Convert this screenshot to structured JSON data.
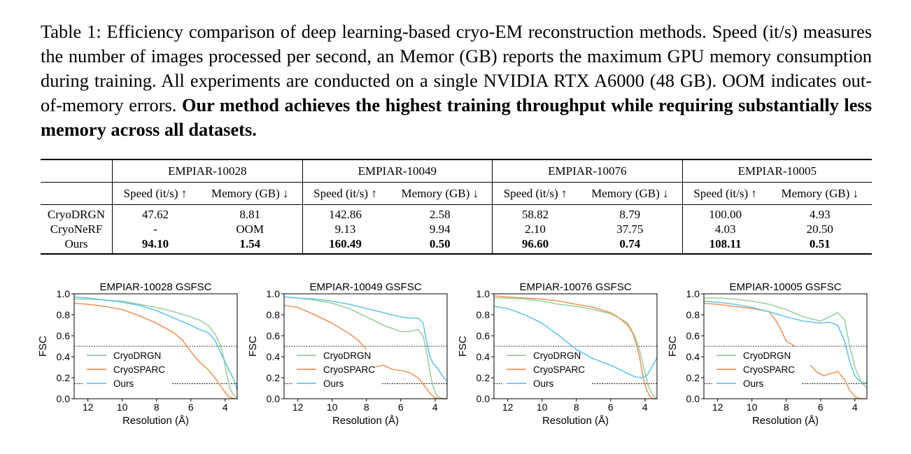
{
  "caption": {
    "plain": "Table 1: Efficiency comparison of deep learning-based cryo-EM reconstruction methods. Speed (it/s) measures the number of images processed per second, an Memor (GB) reports the maximum GPU memory consumption during training.  All experiments are conducted on a single NVIDIA RTX A6000 (48 GB). OOM indicates out-of-memory errors.",
    "bold": "Our method achieves the highest training throughput while requiring substantially less memory across all datasets."
  },
  "table": {
    "datasets": [
      "EMPIAR-10028",
      "EMPIAR-10049",
      "EMPIAR-10076",
      "EMPIAR-10005"
    ],
    "subheaders": [
      "Speed (it/s) ↑",
      "Memory (GB) ↓",
      "Speed (it/s) ↑",
      "Memory (GB) ↓",
      "Speed (it/s) ↑",
      "Memory (GB) ↓",
      "Speed (it/s) ↑",
      "Memory (GB) ↓"
    ],
    "rows": [
      {
        "method": "CryoDRGN",
        "values": [
          "47.62",
          "8.81",
          "142.86",
          "2.58",
          "58.82",
          "8.79",
          "100.00",
          "4.93"
        ]
      },
      {
        "method": "CryoNeRF",
        "values": [
          "-",
          "OOM",
          "9.13",
          "9.94",
          "2.10",
          "37.75",
          "4.03",
          "20.50"
        ]
      },
      {
        "method": "Ours",
        "values": [
          "94.10",
          "1.54",
          "160.49",
          "0.50",
          "96.60",
          "0.74",
          "108.11",
          "0.51"
        ]
      }
    ]
  },
  "chart_data": [
    {
      "type": "line",
      "title": "EMPIAR-10028 GSFSC",
      "xlabel": "Resolution (Å)",
      "ylabel": "FSC",
      "x_ticks": [
        "12",
        "10",
        "8",
        "6",
        "4"
      ],
      "y_ticks": [
        "0.0",
        "0.2",
        "0.4",
        "0.6",
        "0.8",
        "1.0"
      ],
      "xlim": [
        12.8,
        3.3
      ],
      "ylim": [
        0,
        1
      ],
      "thresholds": [
        0.5,
        0.143
      ],
      "legend": [
        "CryoDRGN",
        "CryoSPARC",
        "Ours"
      ],
      "legend_position": "lower-left",
      "series": [
        {
          "name": "CryoDRGN",
          "color": "#98d198",
          "x": [
            12.8,
            12,
            11,
            10,
            9,
            8,
            7,
            6,
            5.5,
            5,
            4.6,
            4.3,
            4.1,
            3.9,
            3.7,
            3.5,
            3.3
          ],
          "y": [
            0.95,
            0.95,
            0.94,
            0.93,
            0.9,
            0.87,
            0.83,
            0.78,
            0.75,
            0.7,
            0.62,
            0.52,
            0.4,
            0.22,
            0.09,
            0.03,
            0.01
          ]
        },
        {
          "name": "CryoSPARC",
          "color": "#f0955a",
          "x": [
            12.8,
            12,
            11,
            10,
            9,
            8,
            7,
            6.5,
            6,
            5.5,
            5,
            4.6,
            4.3,
            4.0,
            3.8,
            3.5,
            3.3
          ],
          "y": [
            0.91,
            0.9,
            0.88,
            0.85,
            0.79,
            0.72,
            0.63,
            0.56,
            0.45,
            0.35,
            0.28,
            0.2,
            0.13,
            0.06,
            0.02,
            0.0,
            0.0
          ]
        },
        {
          "name": "Ours",
          "color": "#64c5f0",
          "x": [
            12.8,
            12,
            11,
            10,
            9,
            8,
            7,
            6,
            5.5,
            5,
            4.6,
            4.3,
            4.0,
            3.8,
            3.6,
            3.4,
            3.3
          ],
          "y": [
            0.97,
            0.96,
            0.94,
            0.92,
            0.89,
            0.84,
            0.77,
            0.7,
            0.66,
            0.63,
            0.56,
            0.45,
            0.35,
            0.28,
            0.22,
            0.14,
            0.08
          ]
        }
      ]
    },
    {
      "type": "line",
      "title": "EMPIAR-10049 GSFSC",
      "xlabel": "Resolution (Å)",
      "ylabel": "FSC",
      "x_ticks": [
        "12",
        "10",
        "8",
        "6",
        "4"
      ],
      "y_ticks": [
        "0.0",
        "0.2",
        "0.4",
        "0.6",
        "0.8",
        "1.0"
      ],
      "xlim": [
        12.8,
        3.3
      ],
      "ylim": [
        0,
        1
      ],
      "thresholds": [
        0.5,
        0.143
      ],
      "legend": [
        "CryoDRGN",
        "CryoSPARC",
        "Ours"
      ],
      "legend_position": "lower-left",
      "series": [
        {
          "name": "CryoDRGN",
          "color": "#98d198",
          "x": [
            12.8,
            12,
            11,
            10,
            9,
            8,
            7,
            6,
            5.5,
            5,
            4.7,
            4.5,
            4.3,
            4.1,
            3.9,
            3.7,
            3.5,
            3.3
          ],
          "y": [
            0.97,
            0.96,
            0.94,
            0.91,
            0.86,
            0.78,
            0.7,
            0.64,
            0.64,
            0.66,
            0.6,
            0.45,
            0.25,
            0.1,
            0.03,
            0.01,
            0.0,
            0.0
          ]
        },
        {
          "name": "CryoSPARC",
          "color": "#f0955a",
          "x": [
            12.8,
            12,
            11,
            10,
            9,
            8.5,
            8,
            7.8,
            7.6,
            7.0,
            6.5,
            6.0,
            5.5,
            5.0,
            4.6,
            4.3,
            4.0,
            3.7,
            3.3
          ],
          "y": [
            0.89,
            0.87,
            0.8,
            0.72,
            0.62,
            0.56,
            0.47,
            null,
            0.3,
            0.32,
            0.28,
            0.27,
            0.25,
            0.2,
            0.12,
            0.05,
            0.01,
            0.0,
            0.0
          ]
        },
        {
          "name": "Ours",
          "color": "#64c5f0",
          "x": [
            12.8,
            12,
            11,
            10,
            9,
            8,
            7,
            6,
            5.5,
            5,
            4.7,
            4.5,
            4.3,
            4.1,
            3.9,
            3.7,
            3.5,
            3.3
          ],
          "y": [
            0.97,
            0.96,
            0.95,
            0.93,
            0.9,
            0.86,
            0.82,
            0.78,
            0.77,
            0.77,
            0.72,
            0.55,
            0.4,
            0.33,
            0.3,
            0.25,
            0.2,
            0.17
          ]
        }
      ]
    },
    {
      "type": "line",
      "title": "EMPIAR-10076 GSFSC",
      "xlabel": "Resolution (Å)",
      "ylabel": "FSC",
      "x_ticks": [
        "12",
        "10",
        "8",
        "6",
        "4"
      ],
      "y_ticks": [
        "0.0",
        "0.2",
        "0.4",
        "0.6",
        "0.8",
        "1.0"
      ],
      "xlim": [
        12.8,
        3.3
      ],
      "ylim": [
        0,
        1
      ],
      "thresholds": [
        0.5,
        0.143
      ],
      "legend": [
        "CryoDRGN",
        "CryoSPARC",
        "Ours"
      ],
      "legend_position": "lower-left",
      "series": [
        {
          "name": "CryoDRGN",
          "color": "#98d198",
          "x": [
            12.8,
            12,
            11,
            10,
            9,
            8,
            7,
            6,
            5.5,
            5,
            4.6,
            4.3,
            4.0,
            3.8,
            3.6,
            3.4,
            3.3
          ],
          "y": [
            0.96,
            0.96,
            0.95,
            0.93,
            0.9,
            0.88,
            0.85,
            0.81,
            0.77,
            0.72,
            0.6,
            0.45,
            0.25,
            0.12,
            0.05,
            0.01,
            0.0
          ]
        },
        {
          "name": "CryoSPARC",
          "color": "#f0955a",
          "x": [
            12.8,
            12,
            11,
            10,
            9,
            8,
            7,
            6,
            5.5,
            5,
            4.7,
            4.5,
            4.3,
            4.1,
            3.9,
            3.7,
            3.5,
            3.3
          ],
          "y": [
            0.98,
            0.97,
            0.96,
            0.95,
            0.93,
            0.9,
            0.87,
            0.82,
            0.77,
            0.7,
            0.62,
            0.52,
            0.38,
            0.2,
            0.08,
            0.02,
            0.0,
            0.0
          ]
        },
        {
          "name": "Ours",
          "color": "#64c5f0",
          "x": [
            12.8,
            12,
            11,
            10,
            9,
            8,
            7,
            6,
            5.5,
            5,
            4.6,
            4.2,
            3.9,
            3.6,
            3.4,
            3.3
          ],
          "y": [
            0.88,
            0.86,
            0.8,
            0.72,
            0.6,
            0.47,
            0.38,
            0.32,
            0.28,
            0.24,
            0.21,
            0.2,
            0.22,
            0.3,
            0.36,
            0.39
          ]
        }
      ]
    },
    {
      "type": "line",
      "title": "EMPIAR-10005 GSFSC",
      "xlabel": "Resolution (Å)",
      "ylabel": "FSC",
      "x_ticks": [
        "12",
        "10",
        "8",
        "6",
        "4"
      ],
      "y_ticks": [
        "0.0",
        "0.2",
        "0.4",
        "0.6",
        "0.8",
        "1.0"
      ],
      "xlim": [
        12.8,
        3.3
      ],
      "ylim": [
        0,
        1
      ],
      "thresholds": [
        0.5,
        0.143
      ],
      "legend": [
        "CryoDRGN",
        "CryoSPARC",
        "Ours"
      ],
      "legend_position": "lower-left",
      "series": [
        {
          "name": "CryoDRGN",
          "color": "#98d198",
          "x": [
            12.8,
            12,
            11,
            10,
            9,
            8,
            7,
            6,
            5.5,
            5.0,
            4.6,
            4.3,
            4.0,
            3.8,
            3.6,
            3.4,
            3.3
          ],
          "y": [
            0.96,
            0.96,
            0.95,
            0.93,
            0.9,
            0.85,
            0.78,
            0.74,
            0.78,
            0.82,
            0.75,
            0.5,
            0.3,
            0.22,
            0.15,
            0.12,
            0.1
          ]
        },
        {
          "name": "CryoSPARC",
          "color": "#f0955a",
          "x": [
            12.8,
            12,
            11,
            10,
            9,
            8.5,
            8,
            7.5,
            7.3,
            6.6,
            6.2,
            5.8,
            5.4,
            5.0,
            4.6,
            4.3,
            4.0,
            3.7,
            3.4,
            3.3
          ],
          "y": [
            0.91,
            0.9,
            0.88,
            0.86,
            0.83,
            0.72,
            0.55,
            0.5,
            null,
            0.32,
            0.25,
            0.22,
            0.24,
            0.26,
            0.18,
            0.08,
            0.02,
            0.0,
            0.0,
            0.0
          ]
        },
        {
          "name": "Ours",
          "color": "#64c5f0",
          "x": [
            12.8,
            12,
            11,
            10,
            9,
            8,
            7,
            6,
            5.5,
            5.0,
            4.6,
            4.3,
            4.0,
            3.8,
            3.6,
            3.4,
            3.3
          ],
          "y": [
            0.93,
            0.92,
            0.9,
            0.87,
            0.83,
            0.78,
            0.74,
            0.72,
            0.73,
            0.7,
            0.55,
            0.35,
            0.22,
            0.18,
            0.16,
            0.15,
            0.15
          ]
        }
      ]
    }
  ]
}
